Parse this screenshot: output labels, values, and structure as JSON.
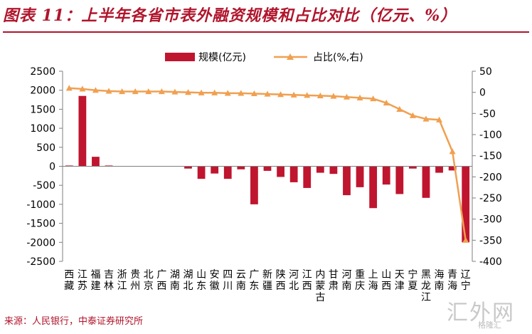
{
  "header": {
    "title": "图表 11：上半年各省市表外融资规模和占比对比（亿元、%）"
  },
  "footer": {
    "source": "来源：人民银行，中泰证券研究所"
  },
  "watermark": {
    "main": "汇外网",
    "sub": "格隆汇"
  },
  "colors": {
    "bar": "#c0152f",
    "line": "#f0a050",
    "title": "#b0152c",
    "axis": "#7f7f7f"
  },
  "chart_data": {
    "type": "bar+line",
    "title": "",
    "legend": {
      "position": "top",
      "bar_label": "规模(亿元)",
      "line_label": "占比(%,右)"
    },
    "categories": [
      "西\n藏",
      "江\n苏",
      "福\n建",
      "吉\n林",
      "浙\n江",
      "贵\n州",
      "北\n京",
      "广\n西",
      "湖\n南",
      "湖\n北",
      "山\n东",
      "安\n徽",
      "四\n川",
      "云\n南",
      "广\n东",
      "新\n疆",
      "陕\n西",
      "河\n北",
      "江\n西",
      "内\n蒙\n古",
      "甘\n肃",
      "河\n南",
      "重\n庆",
      "上\n海",
      "山\n西",
      "天\n津",
      "宁\n夏",
      "黑\n龙\n江",
      "海\n南",
      "青\n海",
      "辽\n宁"
    ],
    "series": [
      {
        "name": "规模(亿元)",
        "type": "bar",
        "axis": "left",
        "values": [
          20,
          1850,
          250,
          20,
          5,
          3,
          5,
          5,
          3,
          -60,
          -330,
          -190,
          -330,
          -80,
          -1000,
          -120,
          -280,
          -420,
          -570,
          -170,
          -200,
          -760,
          -550,
          -1100,
          -480,
          -730,
          -60,
          -830,
          -170,
          -110,
          -2000
        ]
      },
      {
        "name": "占比(%,右)",
        "type": "line",
        "axis": "right",
        "values": [
          10,
          8,
          5,
          3,
          2,
          2,
          2,
          2,
          1,
          0,
          -1,
          -1,
          -2,
          -2,
          -3,
          -4,
          -5,
          -6,
          -7,
          -8,
          -9,
          -11,
          -13,
          -15,
          -25,
          -40,
          -55,
          -63,
          -65,
          -140,
          -350
        ]
      }
    ],
    "y_left": {
      "min": -2500,
      "max": 2500,
      "step": 500,
      "ticks": [
        "2500",
        "2000",
        "1500",
        "1000",
        "500",
        "0",
        "-500",
        "-1000",
        "-1500",
        "-2000",
        "-2500"
      ]
    },
    "y_right": {
      "min": -400,
      "max": 50,
      "step": 50,
      "ticks": [
        "50",
        "0",
        "-50",
        "-100",
        "-150",
        "-200",
        "-250",
        "-300",
        "-350",
        "-400"
      ]
    },
    "grid": false
  }
}
